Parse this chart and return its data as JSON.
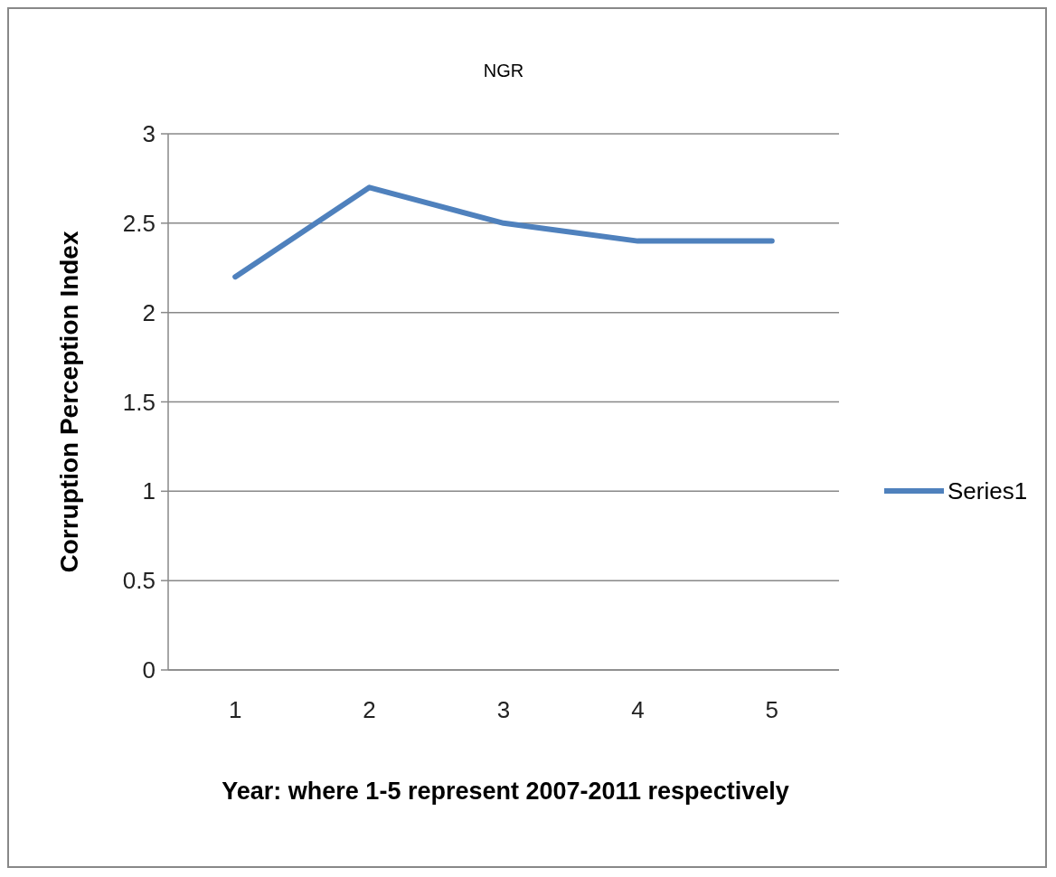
{
  "chart_data": {
    "type": "line",
    "title": "NGR",
    "xlabel": "Year: where 1-5 represent 2007-2011 respectively",
    "ylabel": "Corruption Perception Index",
    "categories": [
      "1",
      "2",
      "3",
      "4",
      "5"
    ],
    "series": [
      {
        "name": "Series1",
        "color": "#4f81bd",
        "values": [
          2.2,
          2.7,
          2.5,
          2.4,
          2.4
        ]
      }
    ],
    "ylim": [
      0,
      3
    ],
    "yticks": [
      0,
      0.5,
      1,
      1.5,
      2,
      2.5,
      3
    ],
    "grid": "y",
    "legend": "right",
    "marker": "none",
    "line_style": "solid"
  }
}
